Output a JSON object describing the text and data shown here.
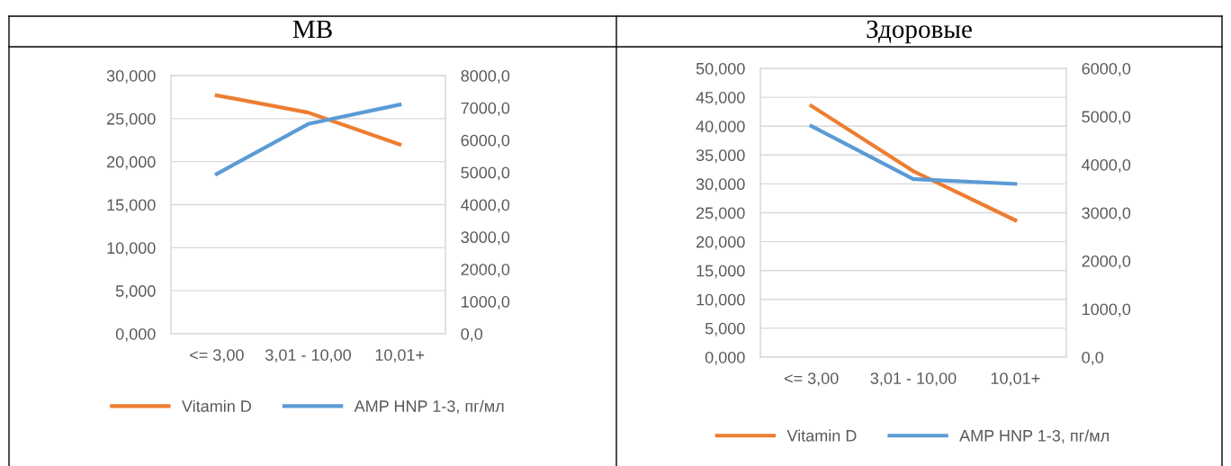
{
  "chart_data": [
    {
      "type": "line",
      "title": "МВ",
      "categories": [
        "<= 3,00",
        "3,01 - 10,00",
        "10,01+"
      ],
      "series": [
        {
          "name": "Vitamin D",
          "color": "#ed7d31",
          "values": [
            27.7,
            25.7,
            22.0
          ]
        },
        {
          "name": "AMP HNP 1-3, пг/мл",
          "color": "#5b9bd5",
          "axis": "y2",
          "values": [
            4950,
            6500,
            7100
          ]
        }
      ],
      "ylim": [
        0,
        30
      ],
      "yticks": [
        {
          "value": 0,
          "label": "0,000"
        },
        {
          "value": 5,
          "label": "5,000"
        },
        {
          "value": 10,
          "label": "10,000"
        },
        {
          "value": 15,
          "label": "15,000"
        },
        {
          "value": 20,
          "label": "20,000"
        },
        {
          "value": 25,
          "label": "25,000"
        },
        {
          "value": 30,
          "label": "30,000"
        }
      ],
      "y2lim": [
        0,
        8000
      ],
      "y2ticks": [
        {
          "value": 0,
          "label": "0,0"
        },
        {
          "value": 1000,
          "label": "1000,0"
        },
        {
          "value": 2000,
          "label": "2000,0"
        },
        {
          "value": 3000,
          "label": "3000,0"
        },
        {
          "value": 4000,
          "label": "4000,0"
        },
        {
          "value": 5000,
          "label": "5000,0"
        },
        {
          "value": 6000,
          "label": "6000,0"
        },
        {
          "value": 7000,
          "label": "7000,0"
        },
        {
          "value": 8000,
          "label": "8000,0"
        }
      ],
      "grid": "y",
      "legend": "bottom",
      "marker": "none",
      "line_style": "solid"
    },
    {
      "type": "line",
      "title": "Здоровые",
      "categories": [
        "<= 3,00",
        "3,01 - 10,00",
        "10,01+"
      ],
      "series": [
        {
          "name": "Vitamin D",
          "color": "#ed7d31",
          "values": [
            43.5,
            32.2,
            23.7
          ]
        },
        {
          "name": "AMP HNP 1-3, пг/мл",
          "color": "#5b9bd5",
          "axis": "y2",
          "values": [
            4800,
            3700,
            3600
          ]
        }
      ],
      "ylim": [
        0,
        50
      ],
      "yticks": [
        {
          "value": 0,
          "label": "0,000"
        },
        {
          "value": 5,
          "label": "5,000"
        },
        {
          "value": 10,
          "label": "10,000"
        },
        {
          "value": 15,
          "label": "15,000"
        },
        {
          "value": 20,
          "label": "20,000"
        },
        {
          "value": 25,
          "label": "25,000"
        },
        {
          "value": 30,
          "label": "30,000"
        },
        {
          "value": 35,
          "label": "35,000"
        },
        {
          "value": 40,
          "label": "40,000"
        },
        {
          "value": 45,
          "label": "45,000"
        },
        {
          "value": 50,
          "label": "50,000"
        }
      ],
      "y2lim": [
        0,
        6000
      ],
      "y2ticks": [
        {
          "value": 0,
          "label": "0,0"
        },
        {
          "value": 1000,
          "label": "1000,0"
        },
        {
          "value": 2000,
          "label": "2000,0"
        },
        {
          "value": 3000,
          "label": "3000,0"
        },
        {
          "value": 4000,
          "label": "4000,0"
        },
        {
          "value": 5000,
          "label": "5000,0"
        },
        {
          "value": 6000,
          "label": "6000,0"
        }
      ],
      "grid": "y",
      "legend": "bottom",
      "marker": "none",
      "line_style": "solid"
    }
  ]
}
